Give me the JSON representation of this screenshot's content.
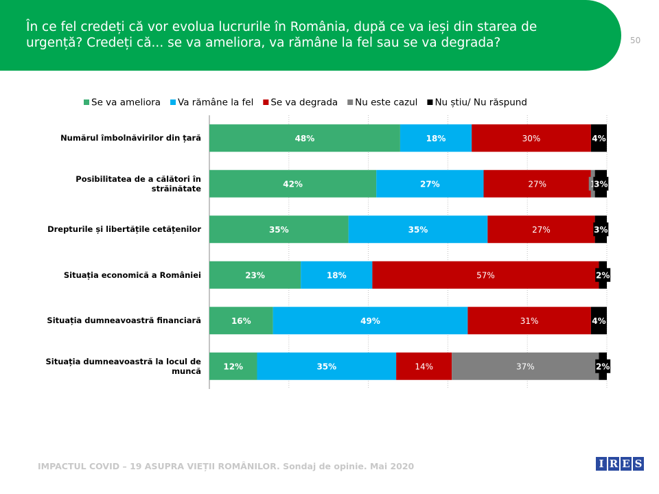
{
  "header": {
    "title": "În ce fel credeți că vor evolua lucrurile în România, după ce va ieși din starea de urgență? Credeți că... se va ameliora, va rămâne la fel sau se va degrada?",
    "page_number": 50
  },
  "chart_data": {
    "type": "stacked-bar-horizontal",
    "categories": [
      "Numărul îmbolnăvirilor din țară",
      "Posibilitatea de a călători în străinătate",
      "Drepturile și libertățile cetățenilor",
      "Situația economică a României",
      "Situația dumneavoastră financiară",
      "Situația dumneavoastră la locul de muncă"
    ],
    "series": [
      {
        "name": "Se va ameliora",
        "color": "#3aae72",
        "values": [
          48,
          42,
          35,
          23,
          16,
          12
        ],
        "value_labels": [
          "48%",
          "42%",
          "35%",
          "23%",
          "16%",
          "12%"
        ]
      },
      {
        "name": "Va rămâne la fel",
        "color": "#00b0f0",
        "values": [
          18,
          27,
          35,
          18,
          49,
          35
        ],
        "value_labels": [
          "18%",
          "27%",
          "35%",
          "18%",
          "49%",
          "35%"
        ]
      },
      {
        "name": "Se va degrada",
        "color": "#c00000",
        "values": [
          30,
          27,
          27,
          57,
          31,
          14
        ],
        "value_labels": [
          "30%",
          "27%",
          "27%",
          "57%",
          "31%",
          "14%"
        ]
      },
      {
        "name": "Nu este cazul",
        "color": "#808080",
        "values": [
          null,
          1,
          null,
          null,
          null,
          37
        ],
        "value_labels": [
          null,
          "1",
          null,
          null,
          null,
          "37%"
        ]
      },
      {
        "name": "Nu știu/ Nu răspund",
        "color": "#000000",
        "values": [
          4,
          3,
          3,
          2,
          4,
          2
        ],
        "value_labels": [
          "4%",
          "3%",
          "3%",
          "2%",
          "4%",
          "2%"
        ]
      }
    ],
    "xlim": [
      0,
      100
    ],
    "xticks": [
      0,
      20,
      40,
      60,
      80,
      100
    ],
    "grid": true,
    "legend": "top"
  },
  "footer": {
    "source": "IMPACTUL COVID – 19 ASUPRA VIEȚII ROMÂNILOR. Sondaj de opinie. Mai 2020",
    "logo": [
      "I",
      "R",
      "E",
      "S"
    ]
  }
}
